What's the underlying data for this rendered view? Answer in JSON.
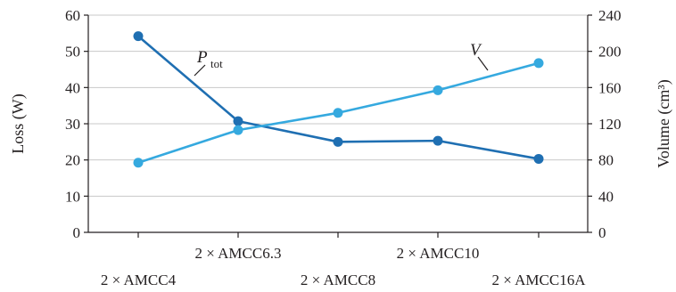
{
  "chart_data": {
    "type": "line",
    "categories": [
      "2 × AMCC4",
      "2 × AMCC6.3",
      "2 × AMCC8",
      "2 × AMCC10",
      "2 × AMCC16A"
    ],
    "series": [
      {
        "name": "P",
        "name_subscript": "tot",
        "axis": "left",
        "color": "#1f6fb2",
        "values": [
          54.2,
          30.7,
          25.0,
          25.3,
          20.3
        ]
      },
      {
        "name": "V",
        "axis": "right",
        "color": "#35a9df",
        "values": [
          77,
          113,
          132,
          157,
          187
        ]
      }
    ],
    "ylabel_left": "Loss (W)",
    "ylabel_right": "Volume (cm³)",
    "ylim_left": [
      0,
      60
    ],
    "yticks_left": [
      0,
      10,
      20,
      30,
      40,
      50,
      60
    ],
    "ylim_right": [
      0,
      240
    ],
    "yticks_right": [
      0,
      40,
      80,
      120,
      160,
      200,
      240
    ],
    "grid": "horizontal"
  }
}
